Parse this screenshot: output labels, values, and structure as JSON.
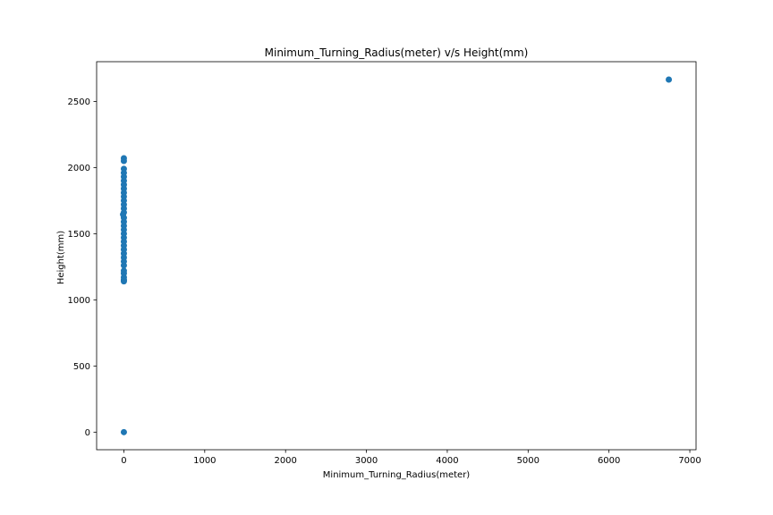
{
  "chart_data": {
    "type": "scatter",
    "title": "Minimum_Turning_Radius(meter) v/s Height(mm)",
    "xlabel": "Minimum_Turning_Radius(meter)",
    "ylabel": "Height(mm)",
    "xlim": [
      -337,
      7077
    ],
    "ylim": [
      -133,
      2800
    ],
    "xticks": [
      0,
      1000,
      2000,
      3000,
      4000,
      5000,
      6000,
      7000
    ],
    "yticks": [
      0,
      500,
      1000,
      1500,
      2000,
      2500
    ],
    "grid": false,
    "marker_color": "#1f77b4",
    "points": [
      {
        "x": 0,
        "y": 0
      },
      {
        "x": 0,
        "y": 1140
      },
      {
        "x": 0,
        "y": 1150
      },
      {
        "x": 0,
        "y": 1170
      },
      {
        "x": 0,
        "y": 1200
      },
      {
        "x": 0,
        "y": 1220
      },
      {
        "x": 0,
        "y": 1260
      },
      {
        "x": 0,
        "y": 1290
      },
      {
        "x": 0,
        "y": 1320
      },
      {
        "x": 0,
        "y": 1350
      },
      {
        "x": 0,
        "y": 1380
      },
      {
        "x": 0,
        "y": 1410
      },
      {
        "x": 0,
        "y": 1440
      },
      {
        "x": 0,
        "y": 1470
      },
      {
        "x": 0,
        "y": 1500
      },
      {
        "x": 0,
        "y": 1530
      },
      {
        "x": 0,
        "y": 1560
      },
      {
        "x": 0,
        "y": 1590
      },
      {
        "x": 0,
        "y": 1620
      },
      {
        "x": -10,
        "y": 1645
      },
      {
        "x": 0,
        "y": 1660
      },
      {
        "x": 0,
        "y": 1690
      },
      {
        "x": 0,
        "y": 1720
      },
      {
        "x": 0,
        "y": 1750
      },
      {
        "x": 0,
        "y": 1780
      },
      {
        "x": 0,
        "y": 1810
      },
      {
        "x": 0,
        "y": 1840
      },
      {
        "x": 0,
        "y": 1870
      },
      {
        "x": 0,
        "y": 1900
      },
      {
        "x": 0,
        "y": 1930
      },
      {
        "x": 0,
        "y": 1960
      },
      {
        "x": 0,
        "y": 1990
      },
      {
        "x": 0,
        "y": 2050
      },
      {
        "x": 0,
        "y": 2070
      },
      {
        "x": 6740,
        "y": 2665
      }
    ]
  }
}
